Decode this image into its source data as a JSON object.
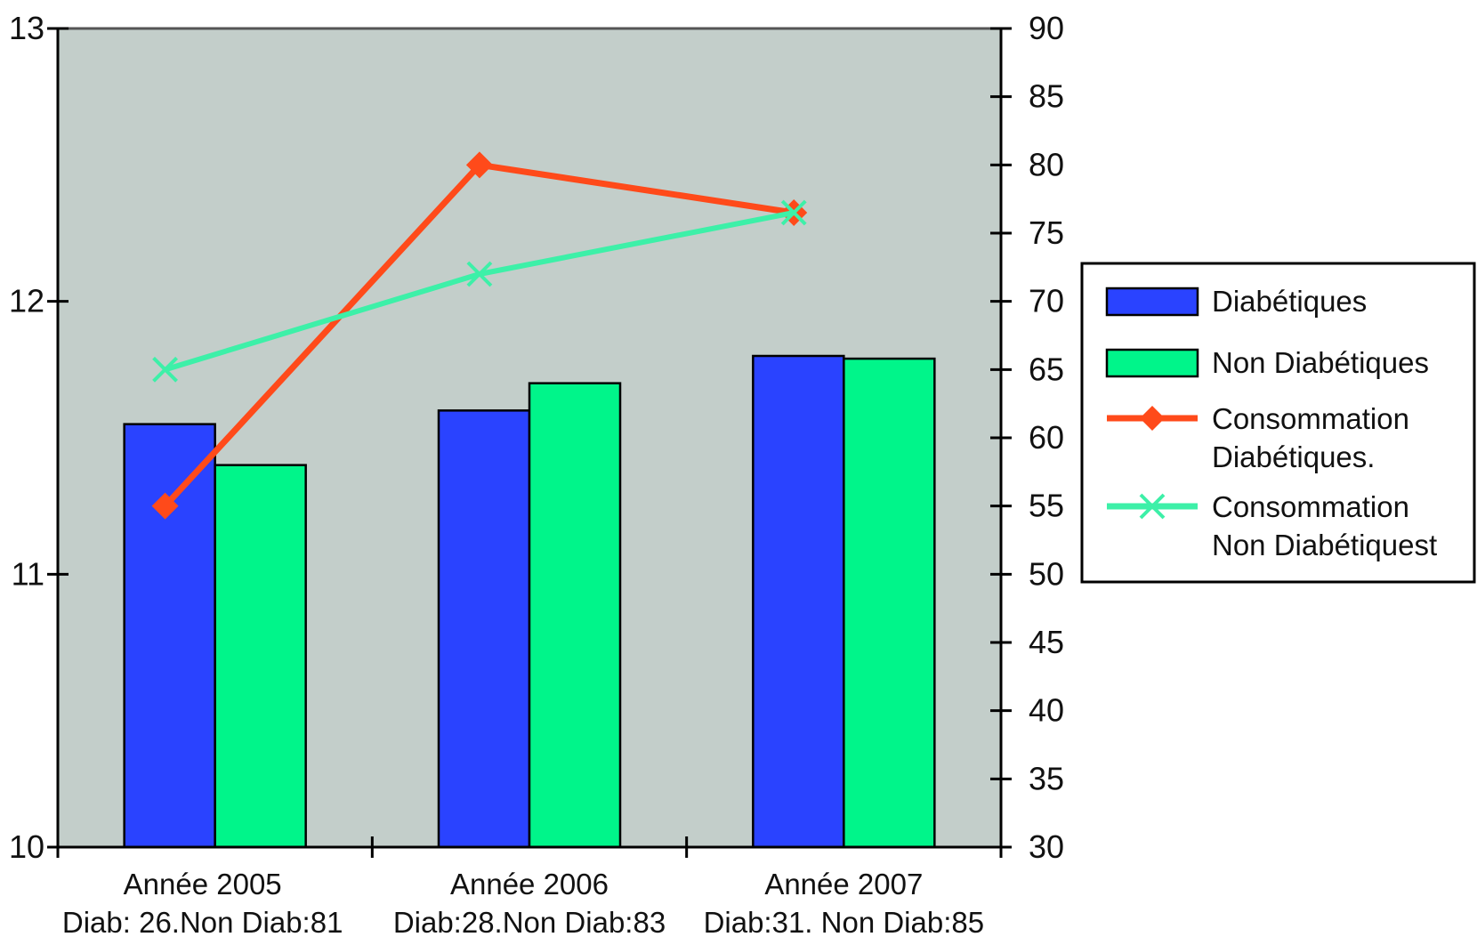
{
  "chart_data": {
    "type": "bar",
    "categories": [
      {
        "line1": "Année 2005",
        "line2": "Diab: 26.Non Diab:81"
      },
      {
        "line1": "Année 2006",
        "line2": "Diab:28.Non Diab:83"
      },
      {
        "line1": "Année 2007",
        "line2": "Diab:31. Non Diab:85"
      }
    ],
    "left_axis": {
      "ylim": [
        10,
        13
      ],
      "ticks": [
        "10",
        "11",
        "12",
        "13"
      ]
    },
    "right_axis": {
      "ylim": [
        30,
        90
      ],
      "ticks": [
        "30",
        "35",
        "40",
        "45",
        "50",
        "55",
        "60",
        "65",
        "70",
        "75",
        "80",
        "85",
        "90"
      ]
    },
    "bar_series": [
      {
        "name": "Diabétiques",
        "color": "#2a43ff",
        "values": [
          11.55,
          11.6,
          11.8
        ]
      },
      {
        "name": "Non Diabétiques",
        "color": "#00f58a",
        "values": [
          11.4,
          11.7,
          11.79
        ]
      }
    ],
    "line_series": [
      {
        "name": "Consommation Diabétiques.",
        "legend_lines": [
          "Consommation",
          "Diabétiques."
        ],
        "color": "#ff4a1a",
        "marker": "diamond",
        "axis": "right",
        "values": [
          55,
          80,
          76.5
        ]
      },
      {
        "name": "Consommation Non Diabétiquest",
        "legend_lines": [
          "Consommation",
          "Non Diabétiquest"
        ],
        "color": "#3df0a8",
        "marker": "x",
        "axis": "right",
        "values": [
          65,
          72,
          76.5
        ]
      }
    ],
    "plot_background": "#c3ceca",
    "grid": false,
    "legend_position": "right"
  }
}
